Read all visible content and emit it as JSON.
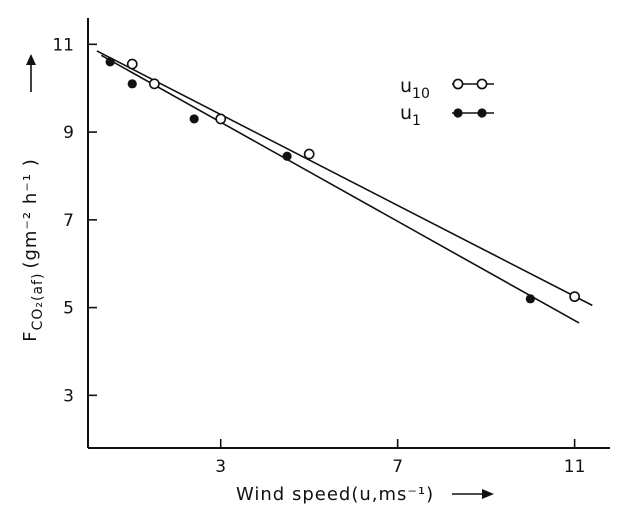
{
  "chart_data": {
    "type": "scatter",
    "xlabel": "Wind speed(u,ms⁻¹)",
    "ylabel": {
      "base": "F",
      "sub": "CO₂(af)",
      "unit": "(gm⁻² h⁻¹ )"
    },
    "x_ticks": [
      3,
      7,
      11
    ],
    "y_ticks": [
      3,
      5,
      7,
      9,
      11
    ],
    "xlim": [
      0.0,
      11.8
    ],
    "ylim": [
      1.8,
      11.6
    ],
    "grid": false,
    "legend_position": "top-right",
    "series": [
      {
        "name": "u10",
        "label_base": "u",
        "label_sub": "10",
        "marker": "open-circle",
        "points": [
          {
            "x": 1.0,
            "y": 10.55
          },
          {
            "x": 1.5,
            "y": 10.1
          },
          {
            "x": 3.0,
            "y": 9.3
          },
          {
            "x": 5.0,
            "y": 8.5
          },
          {
            "x": 11.0,
            "y": 5.25
          }
        ],
        "fit_line": [
          {
            "x": 0.2,
            "y": 10.85
          },
          {
            "x": 11.4,
            "y": 5.05
          }
        ]
      },
      {
        "name": "u1",
        "label_base": "u",
        "label_sub": "1",
        "marker": "filled-circle",
        "points": [
          {
            "x": 0.5,
            "y": 10.6
          },
          {
            "x": 1.0,
            "y": 10.1
          },
          {
            "x": 2.4,
            "y": 9.3
          },
          {
            "x": 4.5,
            "y": 8.45
          },
          {
            "x": 10.0,
            "y": 5.2
          }
        ],
        "fit_line": [
          {
            "x": 0.3,
            "y": 10.75
          },
          {
            "x": 11.1,
            "y": 4.65
          }
        ]
      }
    ]
  }
}
